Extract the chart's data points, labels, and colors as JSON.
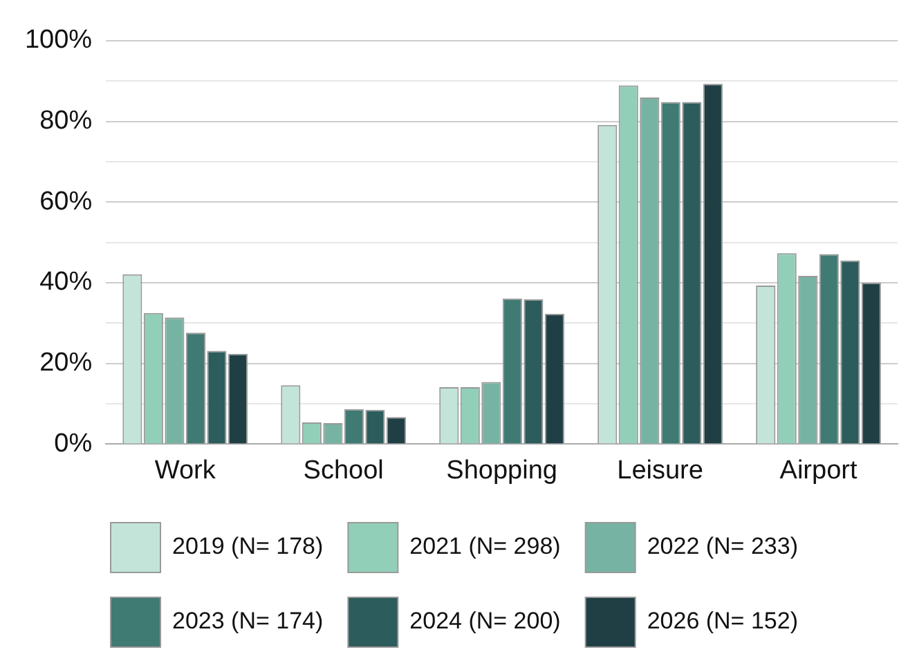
{
  "chart_data": {
    "type": "bar",
    "categories": [
      "Work",
      "School",
      "Shopping",
      "Leisure",
      "Airport"
    ],
    "series": [
      {
        "name": "2019 (N= 178)",
        "color": "#c3e4d9",
        "values": [
          42.1,
          14.6,
          14.1,
          79.1,
          39.3
        ]
      },
      {
        "name": "2021 (N= 298)",
        "color": "#92cfb8",
        "values": [
          32.5,
          5.4,
          14.1,
          88.9,
          47.3
        ]
      },
      {
        "name": "2022 (N= 233)",
        "color": "#76b3a3",
        "values": [
          31.4,
          5.2,
          15.4,
          85.9,
          41.7
        ]
      },
      {
        "name": "2023 (N= 174)",
        "color": "#3f7a73",
        "values": [
          27.6,
          8.7,
          36.1,
          84.8,
          47.1
        ]
      },
      {
        "name": "2024 (N= 200)",
        "color": "#2c5c5b",
        "values": [
          23.1,
          8.5,
          35.9,
          84.8,
          45.5
        ]
      },
      {
        "name": "2026 (N= 152)",
        "color": "#1f3f45",
        "values": [
          22.4,
          6.7,
          32.3,
          89.3,
          40.0
        ]
      }
    ],
    "ylim": [
      0,
      100
    ],
    "yticks": [
      {
        "value": 0,
        "label": "0%"
      },
      {
        "value": 10,
        "label": null
      },
      {
        "value": 20,
        "label": "20%"
      },
      {
        "value": 30,
        "label": null
      },
      {
        "value": 40,
        "label": "40%"
      },
      {
        "value": 50,
        "label": null
      },
      {
        "value": 60,
        "label": "60%"
      },
      {
        "value": 70,
        "label": null
      },
      {
        "value": 80,
        "label": "80%"
      },
      {
        "value": 90,
        "label": null
      },
      {
        "value": 100,
        "label": "100%"
      }
    ],
    "grid": "y",
    "legend": "bottom"
  }
}
